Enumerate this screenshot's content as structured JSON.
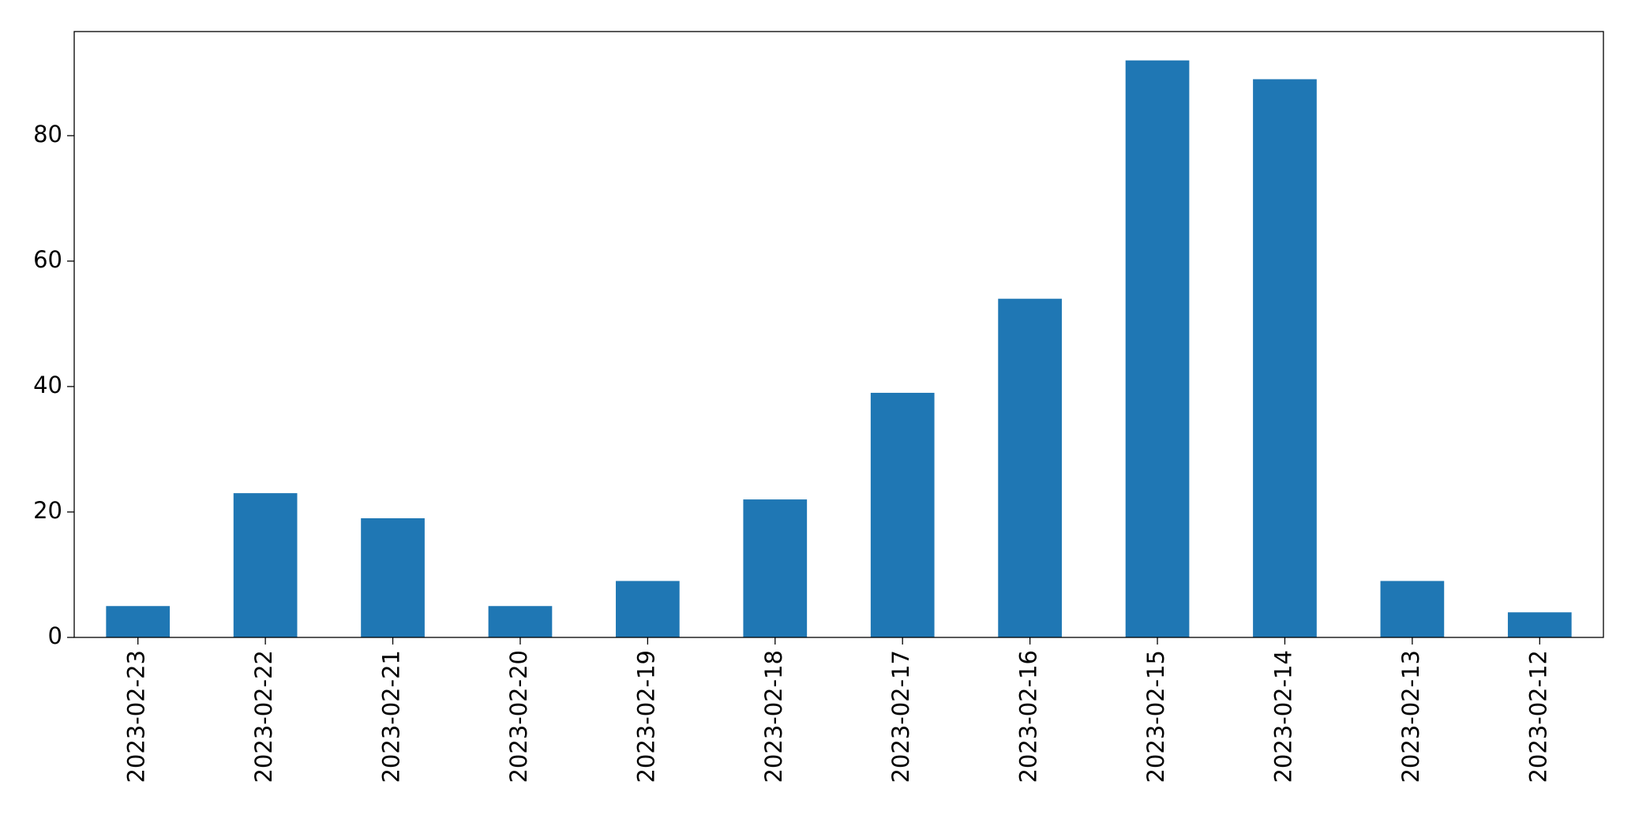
{
  "chart_data": {
    "type": "bar",
    "categories": [
      "2023-02-23",
      "2023-02-22",
      "2023-02-21",
      "2023-02-20",
      "2023-02-19",
      "2023-02-18",
      "2023-02-17",
      "2023-02-16",
      "2023-02-15",
      "2023-02-14",
      "2023-02-13",
      "2023-02-12"
    ],
    "values": [
      5,
      23,
      19,
      5,
      9,
      22,
      39,
      54,
      92,
      89,
      9,
      4
    ],
    "color": "#1f77b4",
    "ylim": [
      0,
      96.6
    ],
    "yticks": [
      0,
      20,
      40,
      60,
      80
    ],
    "grid": false
  }
}
